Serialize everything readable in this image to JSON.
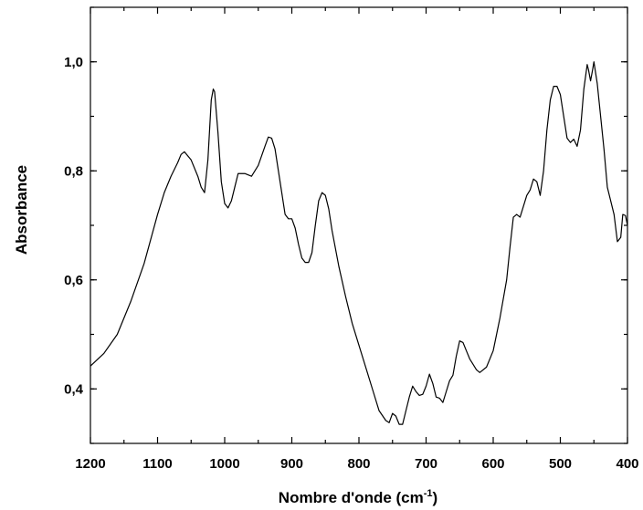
{
  "chart_data": {
    "type": "line",
    "xlabel": "Nombre d'onde (cm",
    "xlabel_sup": "-1",
    "xlabel_suffix": ")",
    "ylabel": "Absorbance",
    "xlim": [
      1200,
      400
    ],
    "ylim": [
      0.3,
      1.1
    ],
    "x_reversed": true,
    "x_ticks": [
      1200,
      1100,
      1000,
      900,
      800,
      700,
      600,
      500,
      400
    ],
    "x_tick_labels": [
      "1200",
      "1100",
      "1000",
      "900",
      "800",
      "700",
      "600",
      "500",
      "400"
    ],
    "y_ticks": [
      0.4,
      0.6,
      0.8,
      1.0
    ],
    "y_tick_labels": [
      "0,4",
      "0,6",
      "0,8",
      "1,0"
    ],
    "grid": false,
    "legend": "none",
    "series": [
      {
        "x": [
          1200,
          1180,
          1160,
          1140,
          1120,
          1100,
          1090,
          1080,
          1070,
          1065,
          1060,
          1050,
          1040,
          1035,
          1030,
          1025,
          1020,
          1017,
          1015,
          1010,
          1005,
          1000,
          995,
          990,
          985,
          980,
          970,
          960,
          950,
          940,
          935,
          930,
          925,
          920,
          915,
          910,
          905,
          900,
          895,
          890,
          885,
          880,
          875,
          870,
          865,
          860,
          855,
          850,
          845,
          840,
          830,
          820,
          810,
          800,
          790,
          780,
          770,
          760,
          755,
          750,
          745,
          740,
          735,
          730,
          725,
          720,
          715,
          710,
          705,
          700,
          695,
          690,
          685,
          680,
          675,
          670,
          665,
          660,
          655,
          650,
          645,
          640,
          635,
          630,
          625,
          620,
          610,
          600,
          590,
          580,
          575,
          570,
          565,
          560,
          550,
          545,
          540,
          535,
          530,
          525,
          520,
          515,
          510,
          505,
          500,
          495,
          490,
          485,
          480,
          475,
          470,
          465,
          460,
          458,
          455,
          452,
          450,
          445,
          440,
          435,
          430,
          425,
          420,
          415,
          410,
          407,
          403,
          400
        ],
        "y": [
          0.442,
          0.465,
          0.5,
          0.56,
          0.63,
          0.72,
          0.76,
          0.79,
          0.815,
          0.83,
          0.835,
          0.82,
          0.79,
          0.77,
          0.76,
          0.82,
          0.93,
          0.95,
          0.945,
          0.87,
          0.78,
          0.74,
          0.732,
          0.745,
          0.77,
          0.795,
          0.795,
          0.79,
          0.81,
          0.845,
          0.862,
          0.86,
          0.84,
          0.8,
          0.76,
          0.72,
          0.712,
          0.712,
          0.695,
          0.665,
          0.64,
          0.632,
          0.632,
          0.65,
          0.7,
          0.745,
          0.76,
          0.755,
          0.73,
          0.69,
          0.625,
          0.57,
          0.52,
          0.48,
          0.44,
          0.4,
          0.36,
          0.342,
          0.338,
          0.355,
          0.35,
          0.335,
          0.335,
          0.36,
          0.385,
          0.405,
          0.395,
          0.388,
          0.39,
          0.405,
          0.427,
          0.41,
          0.385,
          0.383,
          0.375,
          0.395,
          0.415,
          0.425,
          0.46,
          0.488,
          0.485,
          0.47,
          0.455,
          0.445,
          0.435,
          0.43,
          0.44,
          0.47,
          0.53,
          0.6,
          0.66,
          0.715,
          0.72,
          0.715,
          0.755,
          0.765,
          0.785,
          0.78,
          0.755,
          0.8,
          0.875,
          0.93,
          0.955,
          0.955,
          0.94,
          0.9,
          0.86,
          0.852,
          0.858,
          0.845,
          0.875,
          0.95,
          0.995,
          0.985,
          0.965,
          0.985,
          1.0,
          0.96,
          0.9,
          0.84,
          0.77,
          0.745,
          0.72,
          0.67,
          0.678,
          0.72,
          0.718,
          0.7
        ]
      }
    ]
  }
}
